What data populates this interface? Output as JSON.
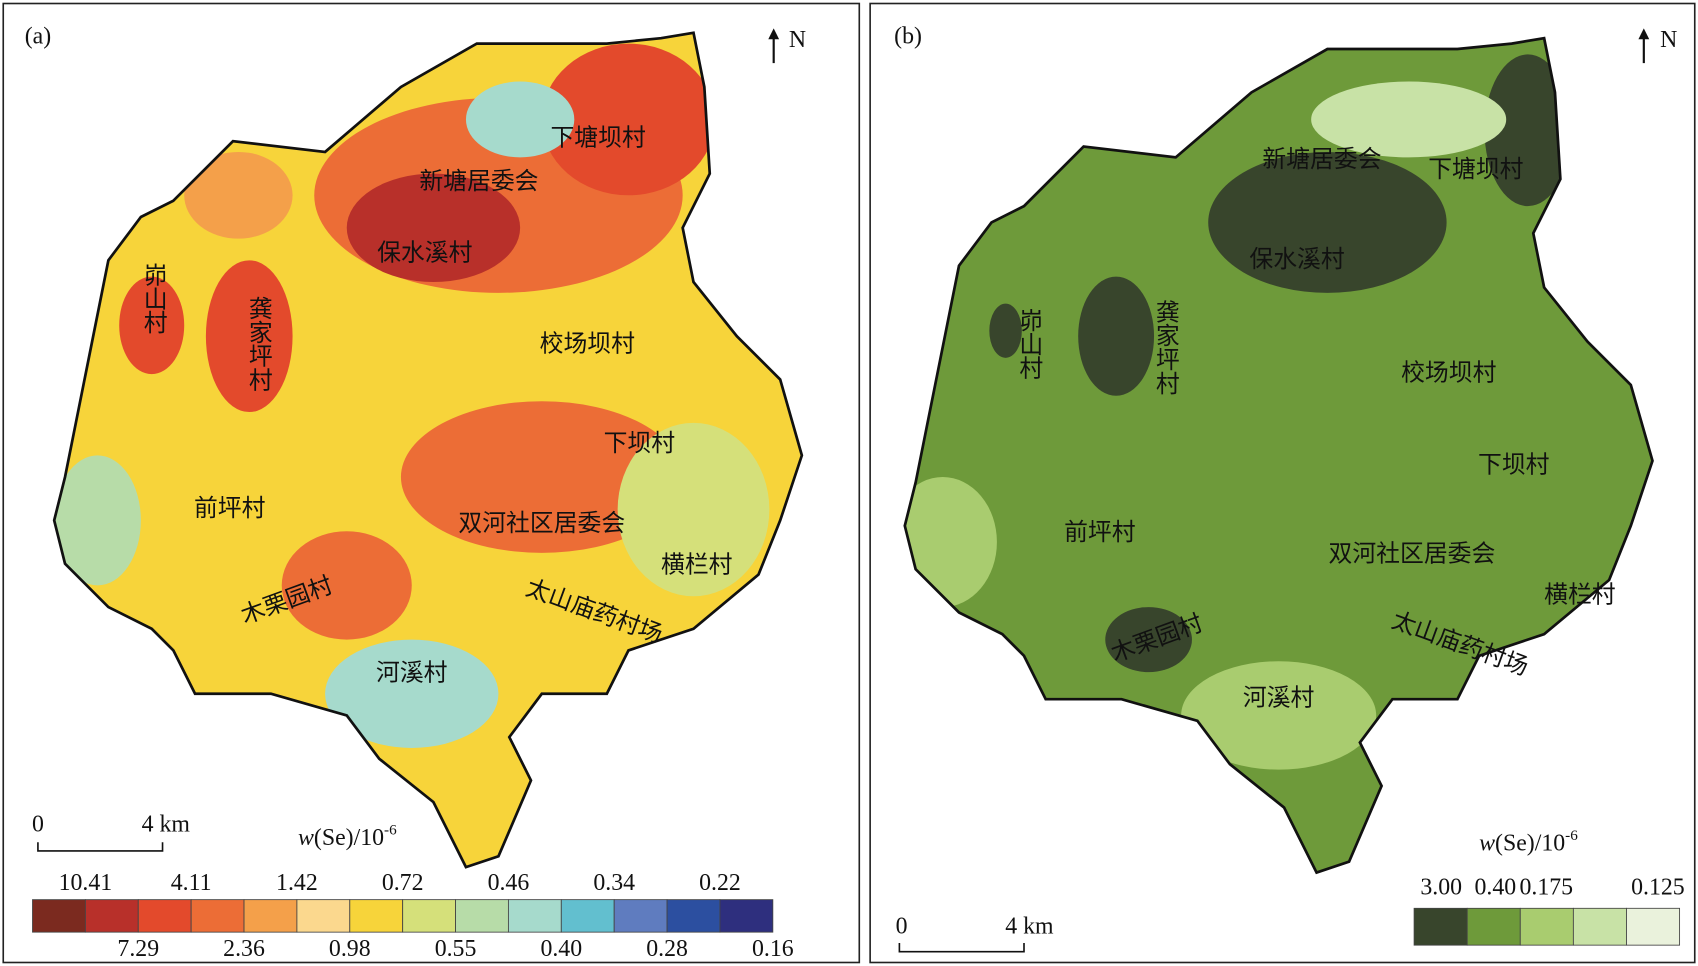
{
  "panels": [
    {
      "label": "(a)",
      "north": "N",
      "scale": {
        "start": "0",
        "end": "4 km"
      },
      "legend": {
        "title": {
          "var": "w",
          "unit": "(Se)/10",
          "exponent": "-6"
        },
        "colors": [
          "#7b2a1f",
          "#b8302a",
          "#e34a2c",
          "#ec6d36",
          "#f4a04a",
          "#fbd88e",
          "#f7d43a",
          "#d5e07a",
          "#b7dca8",
          "#a6dacc",
          "#62bfcf",
          "#5f7cbf",
          "#2c4fa0",
          "#2e2f7e"
        ],
        "top_labels": [
          "10.41",
          "4.11",
          "1.42",
          "0.72",
          "0.46",
          "0.34",
          "0.22"
        ],
        "bottom_labels": [
          "7.29",
          "2.36",
          "0.98",
          "0.55",
          "0.40",
          "0.28",
          "0.16"
        ]
      },
      "villages": [
        "下塘坝村",
        "新塘居委会",
        "保水溪村",
        "峁山村",
        "龚家坪村",
        "校场坝村",
        "下坝村",
        "前坪村",
        "双河社区居委会",
        "横栏村",
        "木栗园村",
        "太山庙药村场",
        "河溪村"
      ]
    },
    {
      "label": "(b)",
      "north": "N",
      "scale": {
        "start": "0",
        "end": "4 km"
      },
      "legend": {
        "title": {
          "var": "w",
          "unit": "(Se)/10",
          "exponent": "-6"
        },
        "colors": [
          "#38452c",
          "#6e9a3a",
          "#a9cc6f",
          "#c8e2a6",
          "#eaf2dc"
        ],
        "top_labels": [
          "3.00",
          "0.40",
          "0.175",
          "0.125"
        ]
      },
      "villages": [
        "新塘居委会",
        "下塘坝村",
        "保水溪村",
        "峁山村",
        "龚家坪村",
        "校场坝村",
        "下坝村",
        "前坪村",
        "双河社区居委会",
        "横栏村",
        "木栗园村",
        "太山庙药村场",
        "河溪村"
      ]
    }
  ]
}
